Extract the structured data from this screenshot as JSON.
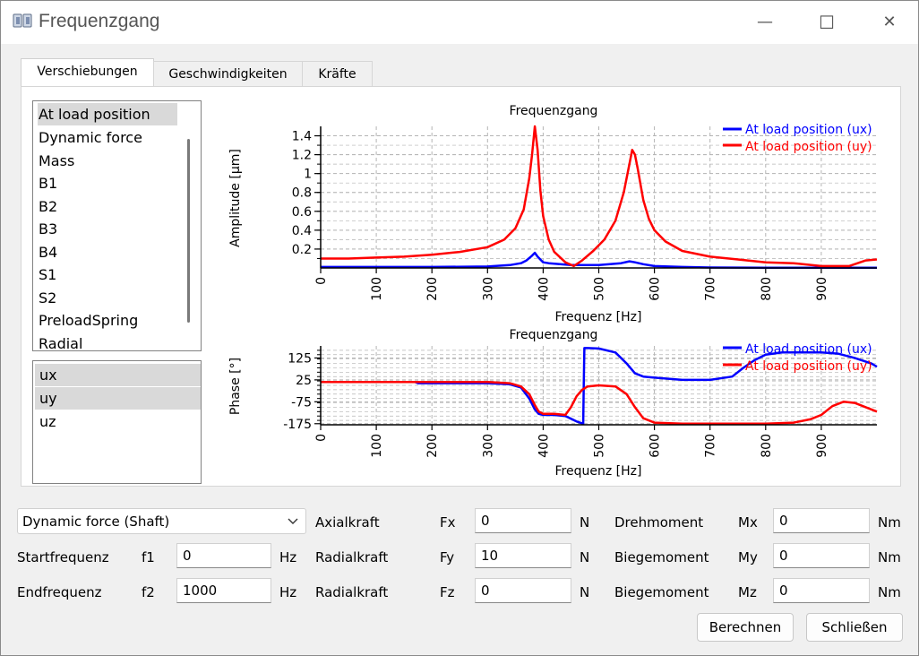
{
  "window": {
    "title": "Frequenzgang",
    "minimize": "—",
    "maximize": "☐",
    "close": "✕"
  },
  "tabs": [
    {
      "label": "Verschiebungen",
      "active": true
    },
    {
      "label": "Geschwindigkeiten",
      "active": false
    },
    {
      "label": "Kräfte",
      "active": false
    }
  ],
  "locations": [
    "At load position",
    "Dynamic force",
    "Mass",
    "B1",
    "B2",
    "B3",
    "B4",
    "S1",
    "S2",
    "PreloadSpring",
    "Radial"
  ],
  "selected_location": "At load position",
  "components": [
    "ux",
    "uy",
    "uz"
  ],
  "selected_components": [
    "ux",
    "uy"
  ],
  "colors": {
    "series_ux": "#0000ff",
    "series_uy": "#ff0000",
    "grid": "#b4b4b4"
  },
  "chart_data": [
    {
      "type": "line",
      "title": "Frequenzgang",
      "xlabel": "Frequenz [Hz]",
      "ylabel": "Amplitude [µm]",
      "xlim": [
        0,
        1000
      ],
      "ylim": [
        0,
        1.5
      ],
      "xticks": [
        0,
        100,
        200,
        300,
        400,
        500,
        600,
        700,
        800,
        900
      ],
      "yticks": [
        0.2,
        0.4,
        0.6,
        0.8,
        1,
        1.2,
        1.4
      ],
      "ytick_labels": [
        "0.2",
        "0.4",
        "0.6",
        "0.8",
        "1",
        "1.2",
        "1.4"
      ],
      "grid": true,
      "legend_position": "top-right",
      "series": [
        {
          "name": "At load position (ux)",
          "color": "#0000ff",
          "x": [
            0,
            100,
            200,
            300,
            340,
            360,
            370,
            380,
            385,
            390,
            400,
            410,
            450,
            500,
            540,
            555,
            565,
            580,
            600,
            650,
            700,
            800,
            900,
            1000
          ],
          "y": [
            0.01,
            0.01,
            0.01,
            0.015,
            0.03,
            0.05,
            0.08,
            0.13,
            0.16,
            0.12,
            0.06,
            0.05,
            0.03,
            0.03,
            0.05,
            0.07,
            0.06,
            0.04,
            0.02,
            0.01,
            0.005,
            0.003,
            0.002,
            0.002
          ]
        },
        {
          "name": "At load position (uy)",
          "color": "#ff0000",
          "x": [
            0,
            50,
            100,
            150,
            200,
            250,
            300,
            330,
            350,
            365,
            375,
            380,
            385,
            390,
            395,
            400,
            410,
            420,
            440,
            455,
            470,
            490,
            510,
            530,
            545,
            555,
            560,
            565,
            570,
            580,
            590,
            600,
            620,
            650,
            700,
            750,
            800,
            850,
            900,
            950,
            980,
            1000
          ],
          "y": [
            0.1,
            0.1,
            0.11,
            0.12,
            0.14,
            0.17,
            0.22,
            0.3,
            0.42,
            0.62,
            0.95,
            1.2,
            1.5,
            1.25,
            0.82,
            0.55,
            0.3,
            0.17,
            0.06,
            0.02,
            0.08,
            0.18,
            0.3,
            0.5,
            0.8,
            1.1,
            1.25,
            1.2,
            1.05,
            0.72,
            0.52,
            0.4,
            0.28,
            0.18,
            0.12,
            0.09,
            0.06,
            0.05,
            0.02,
            0.02,
            0.08,
            0.09
          ]
        }
      ]
    },
    {
      "type": "line",
      "title": "Frequenzgang",
      "xlabel": "Frequenz [Hz]",
      "ylabel": "Phase [°]",
      "xlim": [
        0,
        1000
      ],
      "ylim": [
        -180,
        180
      ],
      "xticks": [
        0,
        100,
        200,
        300,
        400,
        500,
        600,
        700,
        800,
        900
      ],
      "yticks": [
        125,
        25,
        -75,
        -175
      ],
      "ytick_labels": [
        "125",
        "25",
        "-75",
        "-175"
      ],
      "grid": true,
      "legend_position": "top-right",
      "series": [
        {
          "name": "At load position (ux)",
          "color": "#0000ff",
          "x": [
            0,
            100,
            170,
            175,
            300,
            340,
            360,
            375,
            385,
            392,
            400,
            420,
            440,
            460,
            472,
            473,
            474,
            480,
            500,
            530,
            550,
            565,
            580,
            600,
            650,
            700,
            740,
            760,
            780,
            800,
            830,
            860,
            900,
            930,
            960,
            990,
            1000
          ],
          "y": [
            15,
            15,
            15,
            10,
            10,
            5,
            -10,
            -60,
            -110,
            -130,
            -135,
            -135,
            -140,
            -165,
            -175,
            0,
            170,
            170,
            168,
            150,
            100,
            55,
            40,
            35,
            25,
            25,
            40,
            80,
            115,
            140,
            150,
            150,
            150,
            145,
            125,
            100,
            85
          ]
        },
        {
          "name": "At load position (uy)",
          "color": "#ff0000",
          "x": [
            0,
            100,
            200,
            300,
            340,
            360,
            375,
            385,
            392,
            400,
            420,
            440,
            450,
            460,
            470,
            480,
            500,
            530,
            550,
            565,
            580,
            600,
            650,
            700,
            750,
            800,
            850,
            880,
            900,
            920,
            940,
            960,
            980,
            1000
          ],
          "y": [
            15,
            15,
            15,
            15,
            10,
            -5,
            -40,
            -90,
            -120,
            -130,
            -130,
            -135,
            -100,
            -50,
            -20,
            -5,
            0,
            -5,
            -40,
            -100,
            -150,
            -170,
            -175,
            -175,
            -175,
            -175,
            -170,
            -155,
            -135,
            -95,
            -75,
            -80,
            -100,
            -120
          ]
        }
      ]
    }
  ],
  "form": {
    "load_type": "Dynamic force (Shaft)",
    "startfrequenz_label": "Startfrequenz",
    "f1_label": "f1",
    "f1_value": "0",
    "f1_unit": "Hz",
    "endfrequenz_label": "Endfrequenz",
    "f2_label": "f2",
    "f2_value": "1000",
    "f2_unit": "Hz",
    "axialkraft_label": "Axialkraft",
    "fx_label": "Fx",
    "fx_value": "0",
    "fx_unit": "N",
    "radialkraft1_label": "Radialkraft",
    "fy_label": "Fy",
    "fy_value": "10",
    "fy_unit": "N",
    "radialkraft2_label": "Radialkraft",
    "fz_label": "Fz",
    "fz_value": "0",
    "fz_unit": "N",
    "drehmoment_label": "Drehmoment",
    "mx_label": "Mx",
    "mx_value": "0",
    "mx_unit": "Nm",
    "biegemoment1_label": "Biegemoment",
    "my_label": "My",
    "my_value": "0",
    "my_unit": "Nm",
    "biegemoment2_label": "Biegemoment",
    "mz_label": "Mz",
    "mz_value": "0",
    "mz_unit": "Nm"
  },
  "buttons": {
    "calculate": "Berechnen",
    "close": "Schließen"
  }
}
